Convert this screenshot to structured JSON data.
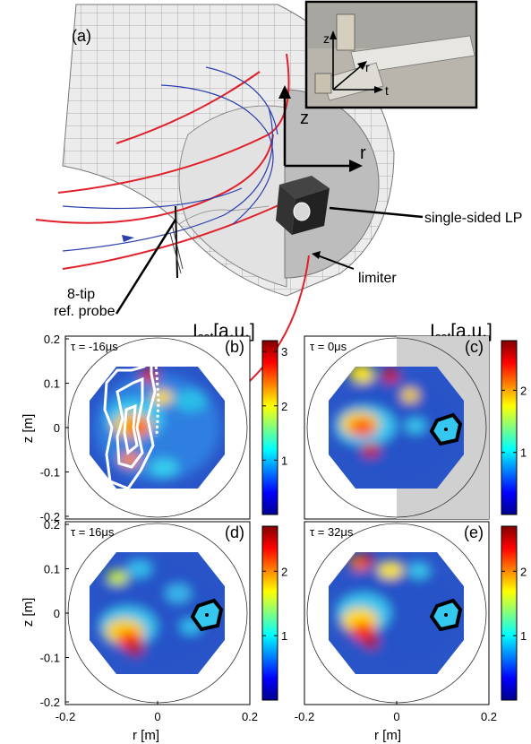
{
  "panel_a": {
    "label": "(a)",
    "inset_axes": [
      "z",
      "r",
      "t"
    ],
    "big_axes": [
      "z",
      "r"
    ],
    "labels": {
      "single_sided": "single-sided LP",
      "limiter": "limiter",
      "probe_line1": "8-tip",
      "probe_line2": "ref. probe"
    }
  },
  "colorbar_titles": [
    {
      "main": "I",
      "sub": "sat",
      "rest": "[a.u.]"
    },
    {
      "main": "I",
      "sub": "sat",
      "rest": "[a.u.]"
    }
  ],
  "axis_labels": {
    "z": "z [m]",
    "r": "r [m]"
  },
  "y_ticks": [
    "0.2",
    "0.1",
    "0",
    "-0.1",
    "-0.2"
  ],
  "x_ticks": [
    "-0.2",
    "0",
    "0.2"
  ],
  "colors": {
    "limiter_shading": "#d0d0d0",
    "contour_white": "#ffffff",
    "contour_black": "#000000"
  },
  "panels": [
    {
      "label": "(b)",
      "tau": "τ = -16μs",
      "cbar_ticks": [
        "3",
        "2",
        "1"
      ],
      "cbar_max": 3.2,
      "limiter_shaded": false,
      "white_contour": true,
      "black_contour": false
    },
    {
      "label": "(c)",
      "tau": "τ = 0μs",
      "cbar_ticks": [
        "2",
        "1"
      ],
      "cbar_max": 2.8,
      "limiter_shaded": true,
      "white_contour": false,
      "black_contour": true
    },
    {
      "label": "(d)",
      "tau": "τ = 16μs",
      "cbar_ticks": [
        "2",
        "1"
      ],
      "cbar_max": 2.7,
      "limiter_shaded": false,
      "white_contour": false,
      "black_contour": true
    },
    {
      "label": "(e)",
      "tau": "τ = 32μs",
      "cbar_ticks": [
        "2",
        "1"
      ],
      "cbar_max": 2.7,
      "limiter_shaded": false,
      "white_contour": false,
      "black_contour": true
    }
  ]
}
